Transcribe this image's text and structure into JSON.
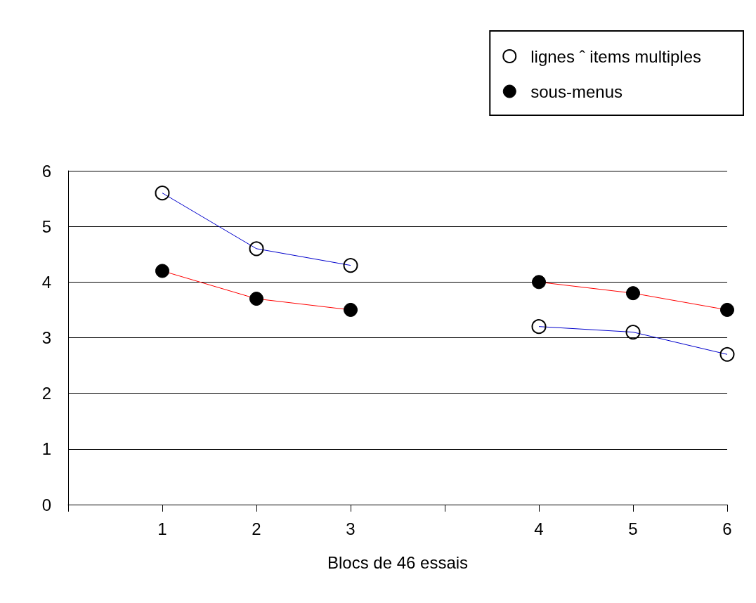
{
  "chart_data": {
    "type": "line",
    "xlabel": "Blocs de 46 essais",
    "categories": [
      null,
      "1",
      "2",
      "3",
      null,
      "4",
      "5",
      "6"
    ],
    "series": [
      {
        "name": "lignes ˆ items multiples",
        "color": "#0000cc",
        "values": [
          null,
          5.6,
          4.6,
          4.3,
          null,
          3.2,
          3.1,
          2.7
        ]
      },
      {
        "name": "sous-menus",
        "color": "#ff0000",
        "values": [
          null,
          4.2,
          3.7,
          3.5,
          null,
          4.0,
          3.8,
          3.5
        ]
      }
    ],
    "ylim": [
      0,
      6
    ],
    "yticks": [
      0,
      1,
      2,
      3,
      4,
      5,
      6
    ],
    "grid": "y",
    "legend": "top right",
    "marker": "circle"
  }
}
